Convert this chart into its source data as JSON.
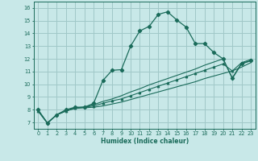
{
  "bg_color": "#c8e8e8",
  "grid_color": "#a0c8c8",
  "line_color": "#1a6b5a",
  "xlabel": "Humidex (Indice chaleur)",
  "xlim": [
    -0.5,
    23.5
  ],
  "ylim": [
    6.5,
    16.5
  ],
  "yticks": [
    7,
    8,
    9,
    10,
    11,
    12,
    13,
    14,
    15,
    16
  ],
  "xticks": [
    0,
    1,
    2,
    3,
    4,
    5,
    6,
    7,
    8,
    9,
    10,
    11,
    12,
    13,
    14,
    15,
    16,
    17,
    18,
    19,
    20,
    21,
    22,
    23
  ],
  "series1_x": [
    0,
    1,
    2,
    3,
    4,
    5,
    6,
    7,
    8,
    9,
    10,
    11,
    12,
    13,
    14,
    15,
    16,
    17,
    18,
    19,
    20,
    21,
    22,
    23
  ],
  "series1_y": [
    8.0,
    6.95,
    7.6,
    8.0,
    8.2,
    8.2,
    8.5,
    10.3,
    11.1,
    11.15,
    13.0,
    14.2,
    14.55,
    15.5,
    15.7,
    15.05,
    14.5,
    13.2,
    13.2,
    12.5,
    12.0,
    10.5,
    11.65,
    11.85
  ],
  "series2_x": [
    0,
    1,
    2,
    3,
    4,
    5,
    6,
    7,
    8,
    9,
    10,
    11,
    12,
    13,
    14,
    15,
    16,
    17,
    18,
    19,
    20,
    21,
    22,
    23
  ],
  "series2_y": [
    7.9,
    6.95,
    7.6,
    7.9,
    8.1,
    8.15,
    8.2,
    8.3,
    8.45,
    8.6,
    8.8,
    9.0,
    9.2,
    9.4,
    9.6,
    9.8,
    10.0,
    10.2,
    10.45,
    10.65,
    10.85,
    11.05,
    11.35,
    11.7
  ],
  "series3_x": [
    0,
    1,
    2,
    3,
    4,
    5,
    6,
    7,
    8,
    9,
    10,
    11,
    12,
    13,
    14,
    15,
    16,
    17,
    18,
    19,
    20,
    21,
    22,
    23
  ],
  "series3_y": [
    7.9,
    6.95,
    7.6,
    7.9,
    8.15,
    8.2,
    8.3,
    8.5,
    8.7,
    8.85,
    9.1,
    9.35,
    9.6,
    9.85,
    10.1,
    10.35,
    10.6,
    10.85,
    11.1,
    11.35,
    11.6,
    11.05,
    11.7,
    11.95
  ],
  "series4_x": [
    0,
    1,
    2,
    3,
    4,
    5,
    6,
    7,
    8,
    9,
    10,
    11,
    12,
    13,
    14,
    15,
    16,
    17,
    18,
    19,
    20,
    21,
    22,
    23
  ],
  "series4_y": [
    7.9,
    6.95,
    7.6,
    7.9,
    8.15,
    8.2,
    8.4,
    8.65,
    8.85,
    9.1,
    9.4,
    9.65,
    9.95,
    10.2,
    10.45,
    10.7,
    10.95,
    11.2,
    11.5,
    11.75,
    12.0,
    10.45,
    11.6,
    11.85
  ]
}
